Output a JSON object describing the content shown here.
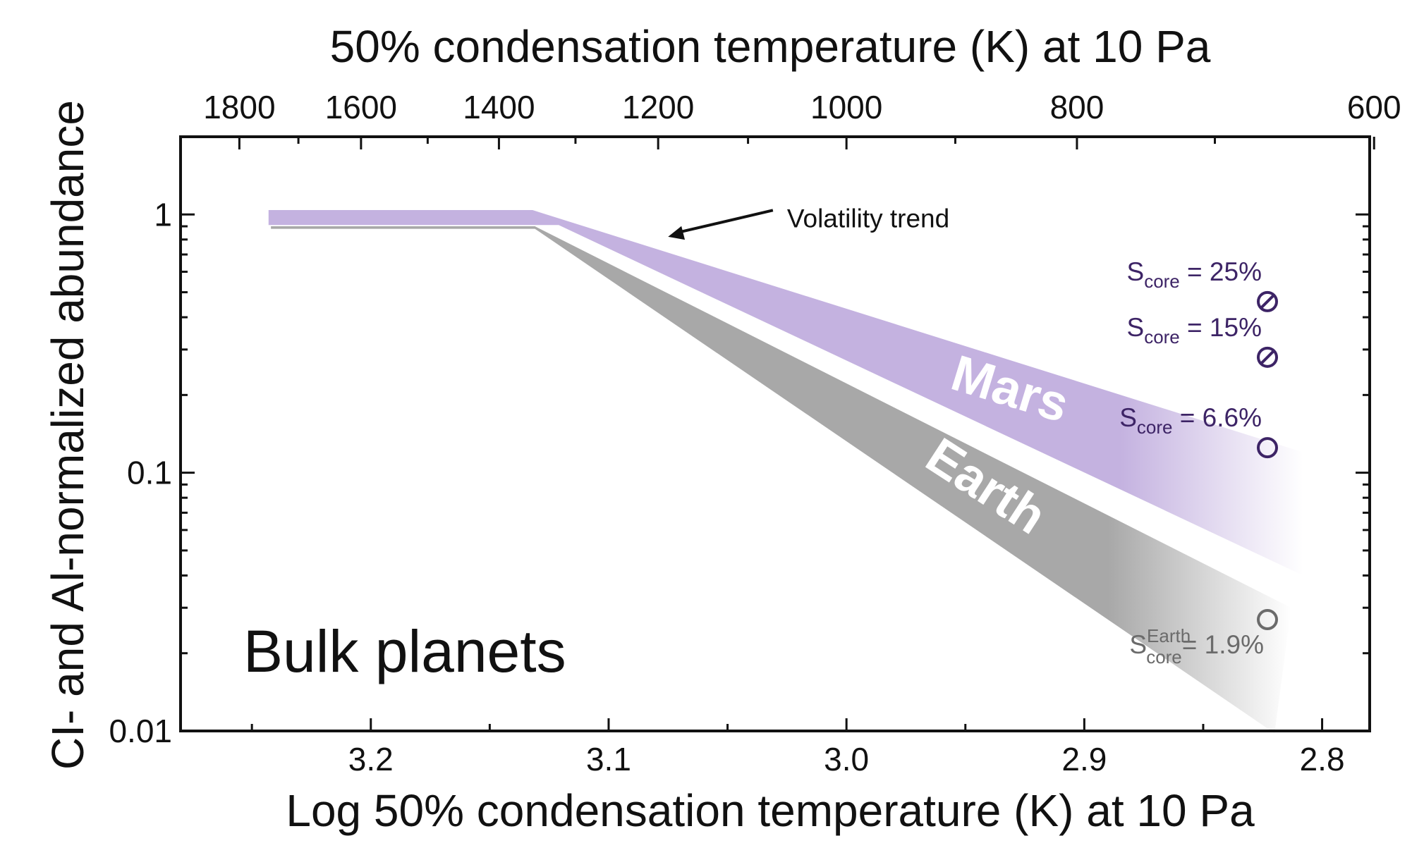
{
  "chart_data": {
    "type": "area",
    "title": "",
    "top_axis": {
      "label": "50% condensation temperature (K) at 10 Pa",
      "ticks": [
        {
          "value": 1800,
          "label": "1800"
        },
        {
          "value": 1600,
          "label": "1600"
        },
        {
          "value": 1400,
          "label": "1400"
        },
        {
          "value": 1200,
          "label": "1200"
        },
        {
          "value": 1000,
          "label": "1000"
        },
        {
          "value": 800,
          "label": "800"
        },
        {
          "value": 600,
          "label": "600"
        }
      ]
    },
    "x_axis": {
      "label": "Log 50% condensation temperature (K) at 10 Pa",
      "range": [
        3.28,
        2.78
      ],
      "ticks": [
        {
          "value": 3.2,
          "label": "3.2"
        },
        {
          "value": 3.1,
          "label": "3.1"
        },
        {
          "value": 3.0,
          "label": "3.0"
        },
        {
          "value": 2.9,
          "label": "2.9"
        },
        {
          "value": 2.8,
          "label": "2.8"
        }
      ]
    },
    "y_axis": {
      "label": "CI- and Al-normalized abundance",
      "scale": "log",
      "range": [
        0.01,
        2
      ],
      "ticks": [
        {
          "value": 1,
          "label": "1"
        },
        {
          "value": 0.1,
          "label": "0.1"
        },
        {
          "value": 0.01,
          "label": "0.01"
        }
      ]
    },
    "series": [
      {
        "name": "Earth",
        "label": "Earth",
        "color": "#a8a8a8",
        "fade_start_x": 2.89,
        "upper": [
          {
            "x": 3.242,
            "y": 0.9
          },
          {
            "x": 3.131,
            "y": 0.9
          },
          {
            "x": 2.813,
            "y": 0.03
          }
        ],
        "lower": [
          {
            "x": 3.242,
            "y": 0.88
          },
          {
            "x": 3.131,
            "y": 0.88
          },
          {
            "x": 2.82,
            "y": 0.0098
          }
        ]
      },
      {
        "name": "Mars",
        "label": "Mars",
        "color": "#c4b2e0",
        "fade_start_x": 2.885,
        "upper": [
          {
            "x": 3.243,
            "y": 1.04
          },
          {
            "x": 3.132,
            "y": 1.04
          },
          {
            "x": 2.808,
            "y": 0.12
          }
        ],
        "lower": [
          {
            "x": 3.243,
            "y": 0.91
          },
          {
            "x": 3.121,
            "y": 0.91
          },
          {
            "x": 2.808,
            "y": 0.04
          }
        ]
      }
    ],
    "points": [
      {
        "label_main": "S",
        "label_sub": "core",
        "label_sup": "",
        "label_value": "= 25%",
        "x": 2.823,
        "y": 0.46,
        "style": "slashed-circle",
        "color": "#3d2466"
      },
      {
        "label_main": "S",
        "label_sub": "core",
        "label_sup": "",
        "label_value": "= 15%",
        "x": 2.823,
        "y": 0.28,
        "style": "slashed-circle",
        "color": "#3d2466"
      },
      {
        "label_main": "S",
        "label_sub": "core",
        "label_sup": "",
        "label_value": "= 6.6%",
        "x": 2.823,
        "y": 0.125,
        "style": "open-circle",
        "color": "#3d2466"
      },
      {
        "label_main": "S",
        "label_sub": "core",
        "label_sup": "Earth",
        "label_value": "= 1.9%",
        "x": 2.823,
        "y": 0.027,
        "style": "open-circle",
        "color": "#6b6b6b"
      }
    ],
    "annotations": {
      "trend": {
        "text": "Volatility trend",
        "x": 3.025,
        "y": 1.0,
        "arrow_to_x": 3.075,
        "arrow_to_y": 0.82
      },
      "panel_label": "Bulk planets"
    }
  }
}
